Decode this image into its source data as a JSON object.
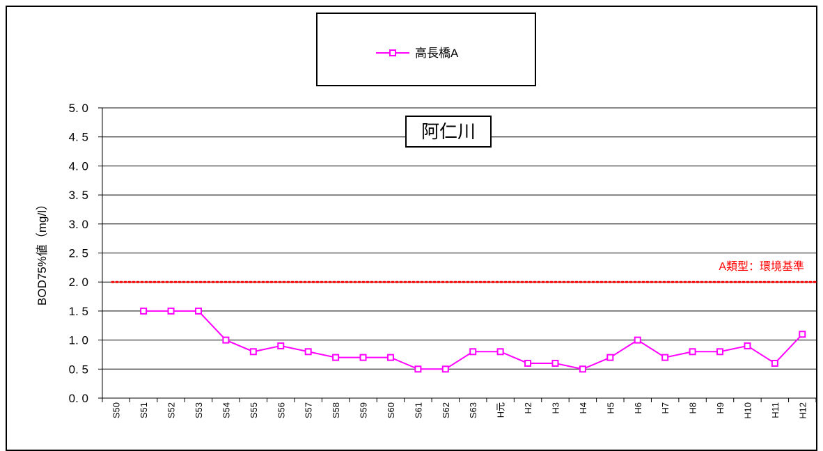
{
  "chart_data": {
    "type": "line",
    "title": "阿仁川",
    "ylabel": "BOD75%値（mg/l）",
    "xlabel": "",
    "ylim": [
      0,
      5
    ],
    "y_ticks": [
      "0. 0",
      "0. 5",
      "1. 0",
      "1. 5",
      "2. 0",
      "2. 5",
      "3. 0",
      "3. 5",
      "4. 0",
      "4. 5",
      "5. 0"
    ],
    "categories": [
      "S50",
      "S51",
      "S52",
      "S53",
      "S54",
      "S55",
      "S56",
      "S57",
      "S58",
      "S59",
      "S60",
      "S61",
      "S62",
      "S63",
      "H元",
      "H2",
      "H3",
      "H4",
      "H5",
      "H6",
      "H7",
      "H8",
      "H9",
      "H10",
      "H11",
      "H12"
    ],
    "series": [
      {
        "name": "高長橋A",
        "color": "#ff00ff",
        "marker": "square",
        "values": [
          null,
          1.5,
          1.5,
          1.5,
          1.0,
          0.8,
          0.9,
          0.8,
          0.7,
          0.7,
          0.7,
          0.5,
          0.5,
          0.8,
          0.8,
          0.6,
          0.6,
          0.5,
          0.7,
          1.0,
          0.7,
          0.8,
          0.8,
          0.9,
          0.6,
          1.1
        ]
      }
    ],
    "reference_line": {
      "label": "A類型：環境基準",
      "value": 2.0,
      "color": "#ff0000",
      "style": "dotted"
    },
    "grid": true,
    "legend": "top-center"
  }
}
